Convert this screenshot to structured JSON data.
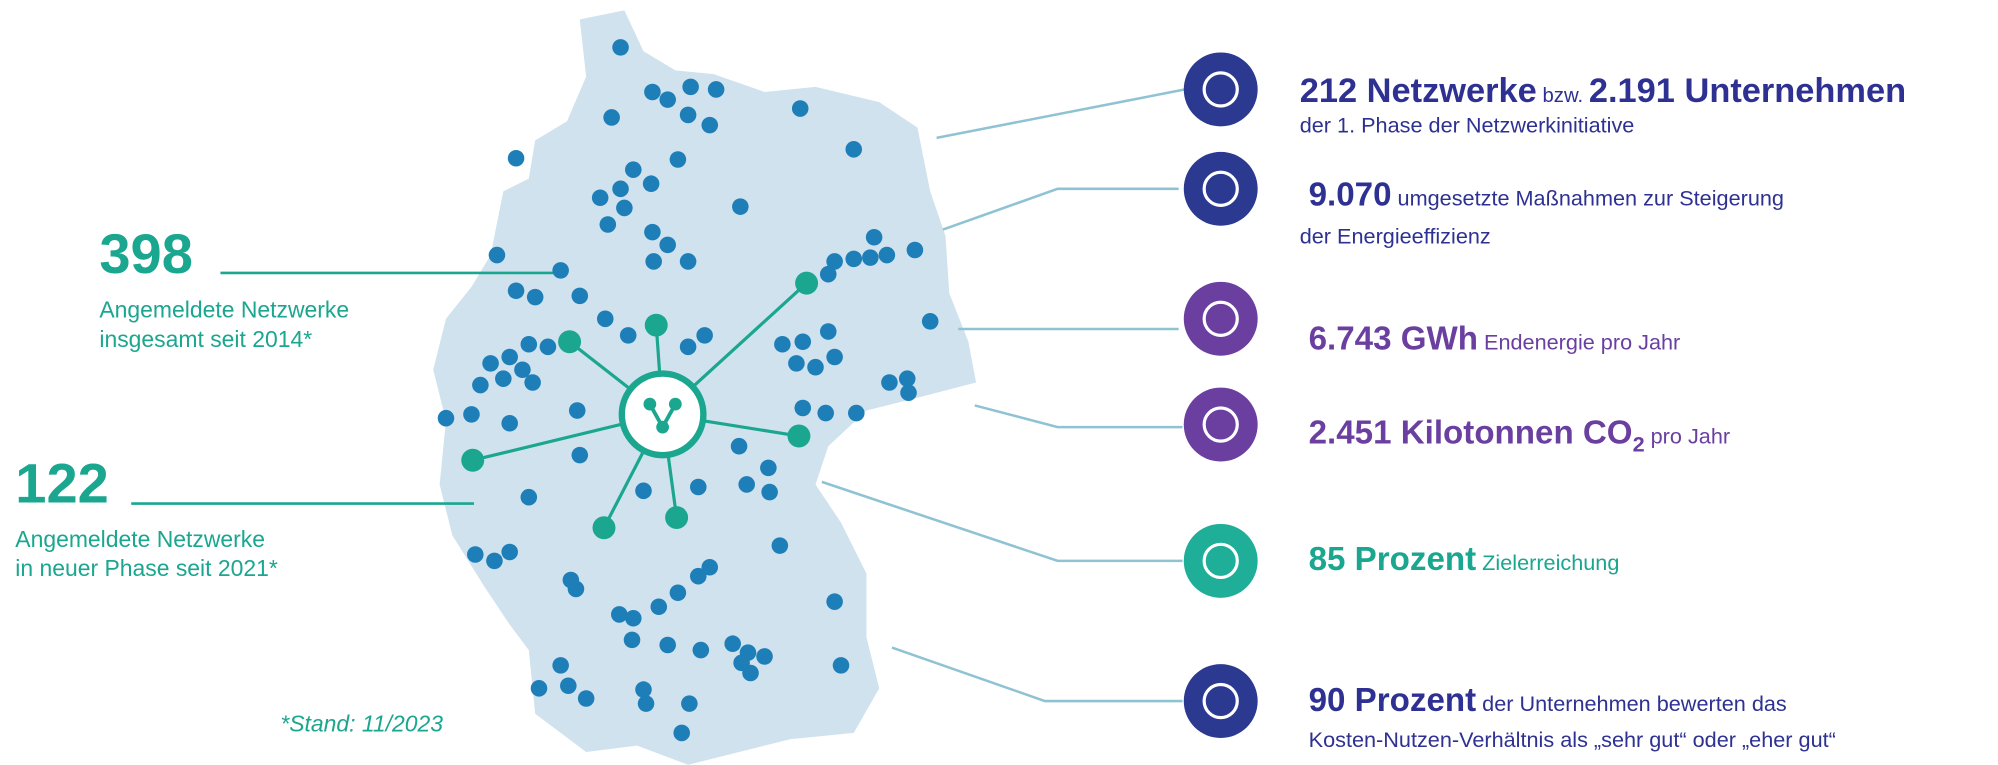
{
  "left_stats": [
    {
      "number": "398",
      "lines": [
        "Angemeldete Netzwerke",
        "insgesamt seit 2014*"
      ]
    },
    {
      "number": "122",
      "lines": [
        "Angemeldete Netzwerke",
        "in neuer Phase seit 2021*"
      ]
    }
  ],
  "footnote": "*Stand: 11/2023",
  "items": [
    {
      "parts": [
        "212 Netzwerke",
        " bzw. ",
        "2.191 Unternehmen"
      ],
      "line2": "der 1. Phase der Netzwerkinitiative"
    },
    {
      "parts": [
        "9.070",
        " umgesetzte Maßnahmen zur Steigerung"
      ],
      "line2": "der Energieeffizienz"
    },
    {
      "parts": [
        "6.743 GWh",
        " Endenergie pro Jahr"
      ]
    },
    {
      "parts": [
        "2.451 Kilotonnen CO",
        "2",
        " pro Jahr"
      ]
    },
    {
      "parts": [
        "85 Prozent",
        " Zielerreichung"
      ]
    },
    {
      "parts": [
        "90 Prozent",
        " der Unternehmen bewerten das"
      ],
      "line2": "Kosten-Nutzen-Verhältnis als „sehr gut“ oder „eher gut“"
    }
  ]
}
